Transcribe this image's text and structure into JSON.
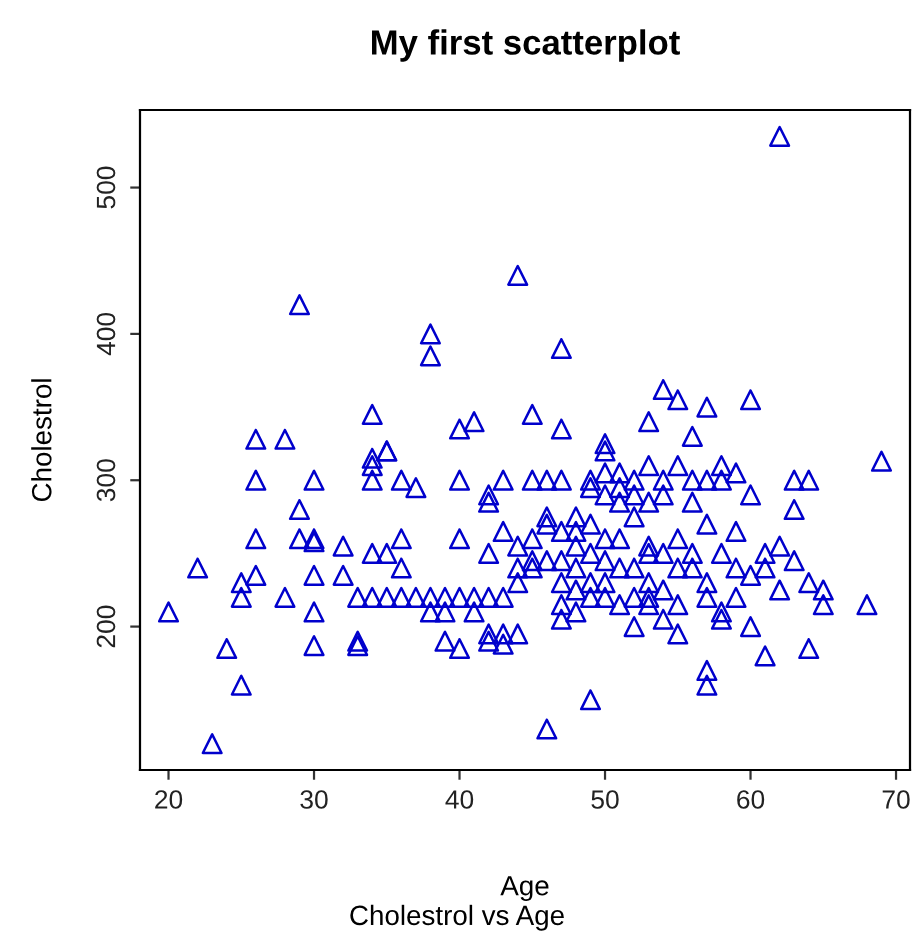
{
  "chart_data": {
    "type": "scatter",
    "title": "My first scatterplot",
    "xlabel": "Age",
    "ylabel": "Cholestrol",
    "annotations": [
      "Cholestrol vs Age"
    ],
    "marker": "triangle",
    "grid": false,
    "xlim": [
      18.04,
      70.96
    ],
    "ylim": [
      102,
      553
    ],
    "xticks": [
      20,
      30,
      40,
      50,
      60,
      70
    ],
    "yticks": [
      200,
      300,
      400,
      500
    ],
    "series": [
      {
        "color": "#0000cc",
        "x": [
          20,
          22,
          23,
          24,
          25,
          25,
          25,
          26,
          26,
          26,
          26,
          28,
          28,
          29,
          29,
          29,
          30,
          30,
          30,
          30,
          30,
          30,
          32,
          32,
          33,
          33,
          33,
          34,
          34,
          34,
          34,
          34,
          34,
          35,
          35,
          35,
          35,
          36,
          36,
          36,
          36,
          37,
          37,
          38,
          38,
          38,
          38,
          39,
          39,
          39,
          40,
          40,
          40,
          40,
          40,
          41,
          41,
          41,
          42,
          42,
          42,
          42,
          42,
          42,
          43,
          43,
          43,
          43,
          43,
          44,
          44,
          44,
          44,
          44,
          45,
          45,
          45,
          45,
          45,
          46,
          46,
          46,
          46,
          46,
          47,
          47,
          47,
          47,
          47,
          47,
          47,
          47,
          48,
          48,
          48,
          48,
          48,
          48,
          49,
          49,
          49,
          49,
          49,
          49,
          49,
          50,
          50,
          50,
          50,
          50,
          50,
          50,
          50,
          51,
          51,
          51,
          51,
          51,
          51,
          52,
          52,
          52,
          52,
          52,
          52,
          53,
          53,
          53,
          53,
          53,
          53,
          53,
          53,
          54,
          54,
          54,
          54,
          54,
          54,
          55,
          55,
          55,
          55,
          55,
          55,
          56,
          56,
          56,
          56,
          56,
          57,
          57,
          57,
          57,
          57,
          57,
          57,
          58,
          58,
          58,
          58,
          58,
          59,
          59,
          59,
          59,
          60,
          60,
          60,
          60,
          61,
          61,
          61,
          62,
          62,
          62,
          63,
          63,
          63,
          64,
          64,
          64,
          65,
          65,
          68,
          69
        ],
        "values": [
          210,
          240,
          120,
          185,
          160,
          220,
          230,
          328,
          300,
          260,
          235,
          328,
          220,
          420,
          280,
          260,
          300,
          260,
          258,
          235,
          210,
          187,
          255,
          235,
          220,
          190,
          187,
          345,
          315,
          310,
          300,
          220,
          250,
          320,
          320,
          250,
          220,
          300,
          260,
          240,
          220,
          295,
          220,
          400,
          385,
          220,
          210,
          220,
          190,
          210,
          335,
          300,
          260,
          185,
          220,
          340,
          210,
          220,
          290,
          285,
          250,
          220,
          195,
          190,
          300,
          265,
          195,
          188,
          220,
          440,
          255,
          240,
          230,
          195,
          345,
          300,
          260,
          245,
          240,
          270,
          300,
          245,
          275,
          130,
          390,
          335,
          300,
          265,
          245,
          215,
          205,
          230,
          265,
          255,
          225,
          240,
          275,
          210,
          295,
          300,
          250,
          230,
          150,
          220,
          270,
          325,
          320,
          305,
          290,
          260,
          245,
          230,
          220,
          305,
          295,
          285,
          260,
          240,
          215,
          300,
          290,
          275,
          240,
          200,
          220,
          340,
          310,
          285,
          255,
          250,
          230,
          215,
          220,
          362,
          300,
          290,
          250,
          205,
          225,
          355,
          310,
          260,
          240,
          215,
          195,
          330,
          300,
          285,
          250,
          240,
          350,
          300,
          270,
          230,
          220,
          170,
          160,
          310,
          300,
          250,
          205,
          210,
          305,
          265,
          240,
          220,
          355,
          290,
          235,
          200,
          250,
          240,
          180,
          535,
          255,
          225,
          300,
          280,
          245,
          300,
          230,
          185,
          225,
          215,
          215,
          313
        ]
      }
    ]
  }
}
